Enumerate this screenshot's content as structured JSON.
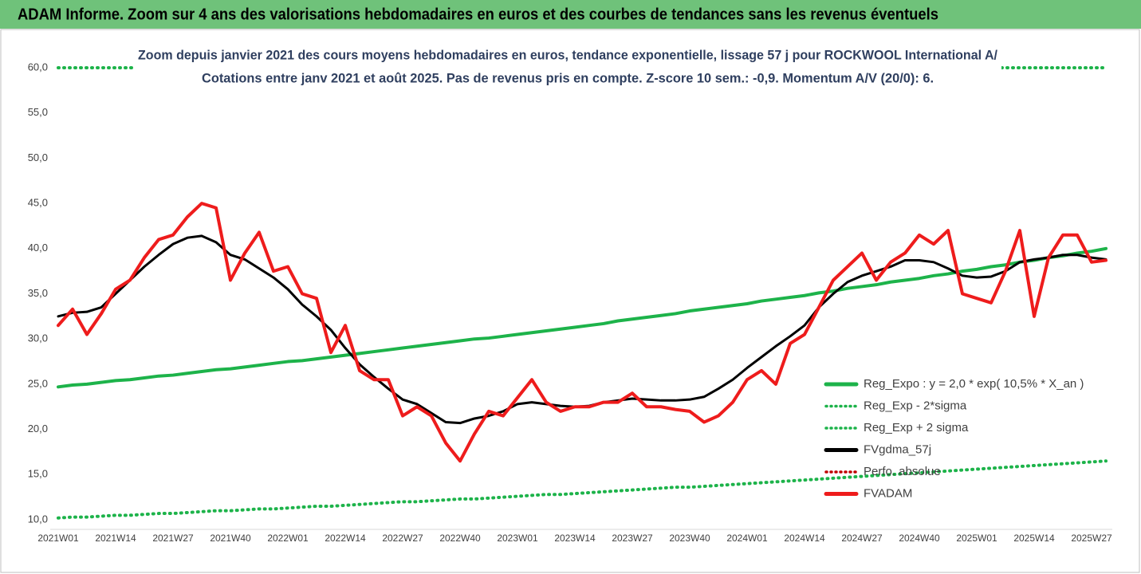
{
  "header": {
    "title": "ADAM Informe. Zoom sur 4 ans des valorisations hebdomadaires en euros et des courbes de tendances sans les revenus éventuels"
  },
  "chart_data": {
    "type": "line",
    "title": "Zoom depuis janvier 2021 des cours moyens hebdomadaires en euros, tendance exponentielle, lissage 57 j pour ROCKWOOL International A/",
    "subtitle": "Cotations entre janv 2021 et août 2025. Pas de revenus pris en compte. Z-score 10 sem.: -0,9. Momentum A/V (20/0): 6.",
    "categories": [
      "2021W01",
      null,
      null,
      null,
      "2021W14",
      null,
      null,
      null,
      "2021W27",
      null,
      null,
      null,
      "2021W40",
      null,
      null,
      null,
      "2022W01",
      null,
      null,
      null,
      "2022W14",
      null,
      null,
      null,
      "2022W27",
      null,
      null,
      null,
      "2022W40",
      null,
      null,
      null,
      "2023W01",
      null,
      null,
      null,
      "2023W14",
      null,
      null,
      null,
      "2023W27",
      null,
      null,
      null,
      "2023W40",
      null,
      null,
      null,
      "2024W01",
      null,
      null,
      null,
      "2024W14",
      null,
      null,
      null,
      "2024W27",
      null,
      null,
      null,
      "2024W40",
      null,
      null,
      null,
      "2025W01",
      null,
      null,
      null,
      "2025W14",
      null,
      null,
      null,
      "2025W27",
      null
    ],
    "ylim": [
      10,
      60
    ],
    "yticks": [
      {
        "value": 10,
        "label": "10,0"
      },
      {
        "value": 15,
        "label": "15,0"
      },
      {
        "value": 20,
        "label": "20,0"
      },
      {
        "value": 25,
        "label": "25,0"
      },
      {
        "value": 30,
        "label": "30,0"
      },
      {
        "value": 35,
        "label": "35,0"
      },
      {
        "value": 40,
        "label": "40,0"
      },
      {
        "value": 45,
        "label": "45,0"
      },
      {
        "value": 50,
        "label": "50,0"
      },
      {
        "value": 55,
        "label": "55,0"
      },
      {
        "value": 60,
        "label": "60,0"
      }
    ],
    "grid": false,
    "legend": "right",
    "series": [
      {
        "name": "Reg_Expo : y = 2,0 * exp( 10,5% *  X_an )",
        "color": "#1db34a",
        "dash": false,
        "values": [
          24.7,
          24.9,
          25.0,
          25.2,
          25.4,
          25.5,
          25.7,
          25.9,
          26.0,
          26.2,
          26.4,
          26.6,
          26.7,
          26.9,
          27.1,
          27.3,
          27.5,
          27.6,
          27.8,
          28.0,
          28.2,
          28.4,
          28.6,
          28.8,
          29.0,
          29.2,
          29.4,
          29.6,
          29.8,
          30.0,
          30.1,
          30.3,
          30.5,
          30.7,
          30.9,
          31.1,
          31.3,
          31.5,
          31.7,
          32.0,
          32.2,
          32.4,
          32.6,
          32.8,
          33.1,
          33.3,
          33.5,
          33.7,
          33.9,
          34.2,
          34.4,
          34.6,
          34.8,
          35.1,
          35.3,
          35.6,
          35.8,
          36.0,
          36.3,
          36.5,
          36.7,
          37.0,
          37.2,
          37.5,
          37.7,
          38.0,
          38.2,
          38.5,
          38.7,
          39.0,
          39.2,
          39.5,
          39.7,
          40.0
        ]
      },
      {
        "name": "Reg_Exp - 2*sigma",
        "color": "#1db34a",
        "dash": true,
        "values": [
          10.2,
          10.3,
          10.3,
          10.4,
          10.5,
          10.5,
          10.6,
          10.7,
          10.7,
          10.8,
          10.9,
          11.0,
          11.0,
          11.1,
          11.2,
          11.2,
          11.3,
          11.4,
          11.5,
          11.5,
          11.6,
          11.7,
          11.8,
          11.9,
          12.0,
          12.0,
          12.1,
          12.2,
          12.3,
          12.3,
          12.4,
          12.5,
          12.6,
          12.7,
          12.8,
          12.8,
          12.9,
          13.0,
          13.1,
          13.2,
          13.3,
          13.4,
          13.5,
          13.6,
          13.6,
          13.7,
          13.8,
          13.9,
          14.0,
          14.1,
          14.2,
          14.3,
          14.4,
          14.5,
          14.6,
          14.7,
          14.8,
          14.9,
          15.0,
          15.1,
          15.2,
          15.3,
          15.4,
          15.5,
          15.6,
          15.7,
          15.8,
          15.9,
          16.0,
          16.1,
          16.2,
          16.3,
          16.4,
          16.5
        ]
      },
      {
        "name": "Reg_Exp + 2 sigma",
        "color": "#1db34a",
        "dash": true,
        "values": [
          60,
          60,
          60,
          60,
          60,
          60,
          60,
          60,
          60,
          60,
          60,
          60,
          60,
          60,
          60,
          60,
          60,
          60,
          60,
          60,
          60,
          60,
          60,
          60,
          60,
          60,
          60,
          60,
          60,
          60,
          60,
          60,
          60,
          60,
          60,
          60,
          60,
          60,
          60,
          60,
          60,
          60,
          60,
          60,
          60,
          60,
          60,
          60,
          60,
          60,
          60,
          60,
          60,
          60,
          60,
          60,
          60,
          60,
          60,
          60,
          60,
          60,
          60,
          60,
          60,
          60,
          60,
          60,
          60,
          60,
          60,
          60,
          60,
          60
        ]
      },
      {
        "name": "FVgdma_57j",
        "color": "#000000",
        "dash": false,
        "values": [
          32.5,
          32.9,
          33.0,
          33.5,
          35.0,
          36.5,
          38.0,
          39.3,
          40.5,
          41.2,
          41.4,
          40.7,
          39.3,
          38.8,
          37.8,
          36.8,
          35.5,
          33.8,
          32.5,
          31.0,
          29.0,
          27.2,
          25.8,
          24.5,
          23.3,
          22.8,
          21.8,
          20.8,
          20.7,
          21.2,
          21.5,
          22.0,
          22.8,
          23.0,
          22.8,
          22.6,
          22.5,
          22.6,
          23.0,
          23.2,
          23.4,
          23.3,
          23.2,
          23.2,
          23.3,
          23.6,
          24.5,
          25.5,
          26.8,
          28.0,
          29.2,
          30.3,
          31.5,
          33.5,
          35.0,
          36.3,
          37.0,
          37.5,
          38.0,
          38.7,
          38.7,
          38.5,
          37.8,
          37.0,
          36.8,
          36.9,
          37.5,
          38.5,
          38.8,
          39.0,
          39.3,
          39.3,
          39.0,
          38.8
        ]
      },
      {
        "name": "Perfo. absolue",
        "color": "#c00000",
        "dash": true,
        "values": [
          null,
          null,
          null,
          null,
          null,
          null,
          null,
          null,
          null,
          null,
          null,
          null,
          null,
          null,
          null,
          null,
          null,
          null,
          null,
          null,
          null,
          null,
          null,
          null,
          null,
          null,
          null,
          null,
          null,
          null,
          null,
          null,
          null,
          null,
          null,
          null,
          null,
          null,
          null,
          null,
          null,
          null,
          null,
          null,
          null,
          null,
          null,
          null,
          null,
          null,
          null,
          null,
          null,
          null,
          null,
          null,
          null,
          null,
          null,
          null,
          null,
          null,
          null,
          null,
          null,
          null,
          null,
          null,
          null,
          null,
          null,
          null,
          null,
          null
        ]
      },
      {
        "name": "FVADAM",
        "color": "#ee1c1c",
        "dash": false,
        "values": [
          31.5,
          33.3,
          30.5,
          32.8,
          35.5,
          36.5,
          39.0,
          41.0,
          41.5,
          43.5,
          45.0,
          44.5,
          36.5,
          39.5,
          41.8,
          37.5,
          38.0,
          35.0,
          34.5,
          28.5,
          31.5,
          26.5,
          25.5,
          25.5,
          21.5,
          22.5,
          21.5,
          18.5,
          16.5,
          19.5,
          22.0,
          21.5,
          23.5,
          25.5,
          23.0,
          22.0,
          22.5,
          22.5,
          23.0,
          23.0,
          24.0,
          22.5,
          22.5,
          22.2,
          22.0,
          20.8,
          21.5,
          23.0,
          25.5,
          26.5,
          25.0,
          29.5,
          30.5,
          33.5,
          36.5,
          38.0,
          39.5,
          36.5,
          38.5,
          39.5,
          41.5,
          40.5,
          42.0,
          35.0,
          34.5,
          34.0,
          37.5,
          42.0,
          32.5,
          39.0,
          41.5,
          41.5,
          38.5,
          38.7
        ]
      }
    ]
  }
}
